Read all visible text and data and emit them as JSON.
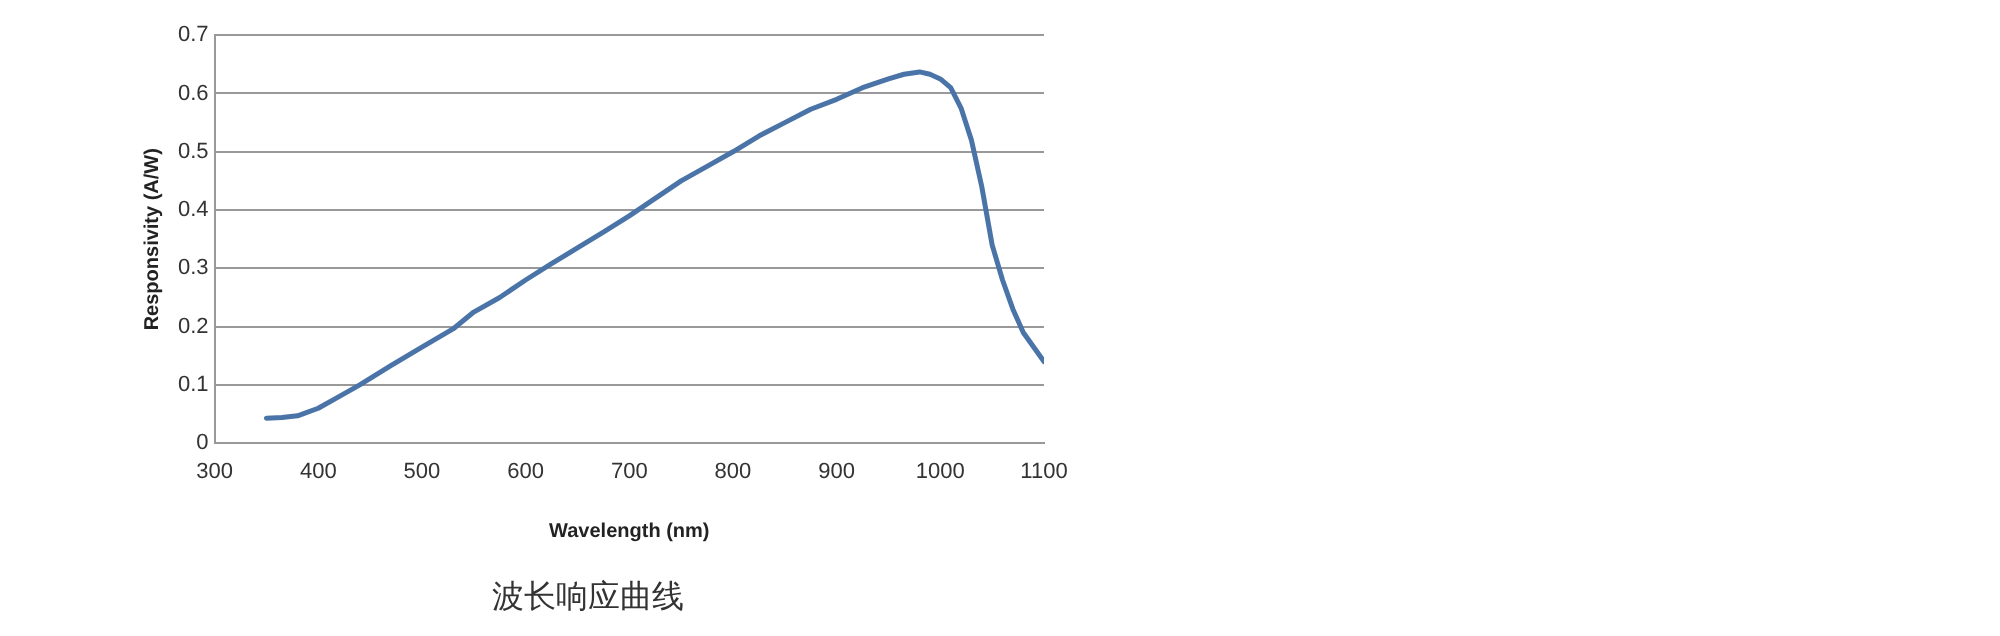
{
  "chart_data": {
    "type": "line",
    "title": "波长响应曲线",
    "xlabel": "Wavelength (nm)",
    "ylabel": "Responsivity (A/W)",
    "series": [
      {
        "color": "#4a74a8",
        "x": [
          350,
          365,
          380,
          400,
          420,
          440,
          470,
          500,
          530,
          550,
          575,
          600,
          625,
          650,
          675,
          700,
          725,
          750,
          775,
          800,
          825,
          850,
          875,
          900,
          925,
          950,
          965,
          980,
          990,
          1000,
          1010,
          1020,
          1030,
          1040,
          1050,
          1060,
          1070,
          1080,
          1090,
          1100
        ],
        "values": [
          0.043,
          0.044,
          0.047,
          0.06,
          0.08,
          0.1,
          0.133,
          0.165,
          0.196,
          0.225,
          0.25,
          0.28,
          0.308,
          0.335,
          0.362,
          0.39,
          0.42,
          0.45,
          0.475,
          0.5,
          0.527,
          0.55,
          0.573,
          0.59,
          0.61,
          0.625,
          0.633,
          0.637,
          0.633,
          0.625,
          0.61,
          0.575,
          0.52,
          0.44,
          0.34,
          0.28,
          0.23,
          0.19,
          0.165,
          0.14
        ]
      }
    ],
    "xlim": [
      300,
      1100
    ],
    "xticks": [
      300,
      400,
      500,
      600,
      700,
      800,
      900,
      1000,
      1100
    ],
    "ylim": [
      0,
      0.7
    ],
    "yticks": [
      0,
      0.1,
      0.2,
      0.3,
      0.4,
      0.5,
      0.6,
      0.7
    ],
    "grid": "y",
    "legend": false,
    "marker": "none",
    "line_style": "solid"
  }
}
